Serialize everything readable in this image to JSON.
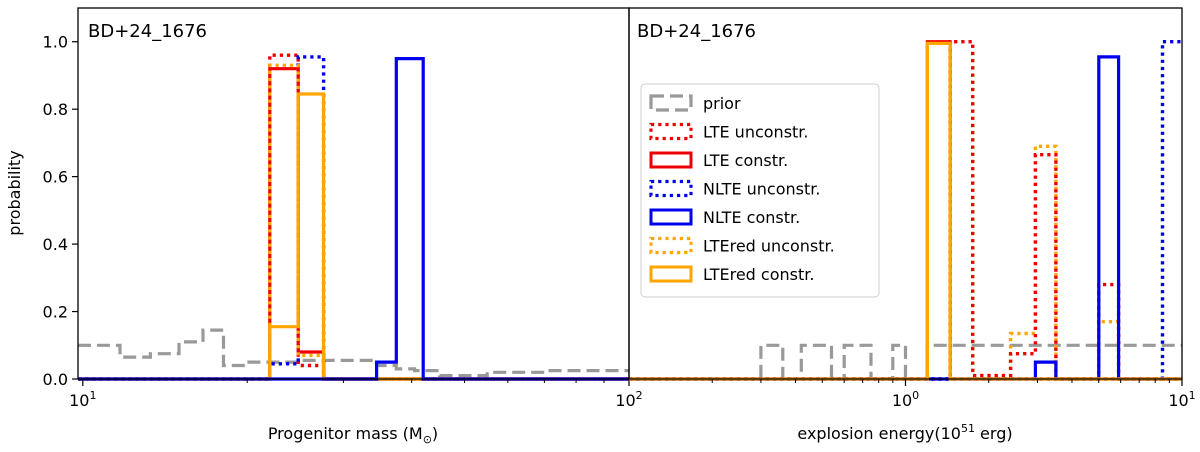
{
  "chart_data": [
    {
      "type": "step-histogram",
      "panel": "left",
      "star_label": "BD+24_1676",
      "xlabel": "Progenitor mass (M",
      "xlabel_sub": "⊙",
      "xlabel_close": ")",
      "ylabel": "probability",
      "xscale": "log",
      "xlim": [
        9.8,
        100
      ],
      "ylim": [
        0,
        1.1
      ],
      "xticks": [
        {
          "value": 10,
          "base": "10",
          "exp": "1"
        },
        {
          "value": 100,
          "base": "10",
          "exp": "2"
        }
      ],
      "yticks": [
        {
          "value": 0,
          "label": "0.0"
        },
        {
          "value": 0.2,
          "label": "0.2"
        },
        {
          "value": 0.4,
          "label": "0.4"
        },
        {
          "value": 0.6,
          "label": "0.6"
        },
        {
          "value": 0.8,
          "label": "0.8"
        },
        {
          "value": 1.0,
          "label": "1.0"
        }
      ],
      "series": [
        {
          "name": "prior",
          "color": "#999999",
          "style": "dashed",
          "edges": [
            9.8,
            11.7,
            13.3,
            15.0,
            16.6,
            18.1,
            19.8,
            24.8,
            26.5,
            34.5,
            37.5,
            40.5,
            45.0,
            55.0,
            70.0,
            100.0
          ],
          "values": [
            0.1,
            0.065,
            0.075,
            0.11,
            0.145,
            0.04,
            0.05,
            0.055,
            0.055,
            0.04,
            0.03,
            0.025,
            0.01,
            0.02,
            0.025
          ]
        },
        {
          "name": "LTE unconstr.",
          "color": "#ee0000",
          "style": "dotted",
          "edges": [
            9.8,
            22.0,
            24.8,
            27.6,
            100.0
          ],
          "values": [
            0,
            0.96,
            0.04,
            0,
            0
          ]
        },
        {
          "name": "NLTE unconstr.",
          "color": "#0000ee",
          "style": "dotted",
          "edges": [
            9.8,
            22.0,
            24.8,
            27.6,
            100.0
          ],
          "values": [
            0,
            0.045,
            0.955,
            0,
            0
          ]
        },
        {
          "name": "LTE constr.",
          "color": "#ee0000",
          "style": "solid",
          "edges": [
            9.8,
            22.0,
            24.8,
            27.6,
            100.0
          ],
          "values": [
            0,
            0.92,
            0.08,
            0,
            0
          ]
        },
        {
          "name": "LTEred unconstr.",
          "color": "#ffa500",
          "style": "dotted",
          "edges": [
            9.8,
            22.0,
            24.8,
            27.6,
            100.0
          ],
          "values": [
            0,
            0.93,
            0.07,
            0,
            0
          ]
        },
        {
          "name": "LTEred constr.",
          "color": "#ffa500",
          "style": "solid",
          "edges": [
            9.8,
            22.0,
            24.8,
            27.6,
            100.0
          ],
          "values": [
            0,
            0.155,
            0.845,
            0,
            0
          ]
        },
        {
          "name": "NLTE constr.",
          "color": "#0000ee",
          "style": "solid",
          "edges": [
            9.8,
            34.5,
            37.5,
            42.0,
            100.0
          ],
          "values": [
            0,
            0.05,
            0.95,
            0,
            0
          ]
        }
      ]
    },
    {
      "type": "step-histogram",
      "panel": "right",
      "star_label": "BD+24_1676",
      "xlabel": "explosion energy(10",
      "xlabel_sup": "51",
      "xlabel_close": " erg)",
      "xscale": "log",
      "xlim": [
        0.1,
        10
      ],
      "ylim": [
        0,
        1.1
      ],
      "xticks": [
        {
          "value": 1,
          "label": "10",
          "exp": "0"
        },
        {
          "value": 10,
          "label": "10",
          "exp": "1"
        }
      ],
      "series": [
        {
          "name": "prior",
          "color": "#999999",
          "style": "dashed",
          "edges": [
            0.1,
            0.3,
            0.36,
            0.42,
            0.54,
            0.6,
            0.75,
            0.9,
            1.0,
            1.2,
            1.45,
            2.0,
            2.95,
            3.5,
            5.0,
            5.9,
            8.5,
            10.0
          ],
          "values": [
            0,
            0.1,
            0,
            0.1,
            0,
            0.1,
            0,
            0.1,
            0,
            0.1,
            0.1,
            0.1,
            0.1,
            0.1,
            0.1,
            0.1,
            0.1
          ]
        },
        {
          "name": "LTEred unconstr.",
          "color": "#ffa500",
          "style": "dotted",
          "edges": [
            0.1,
            1.2,
            1.45,
            1.75,
            2.4,
            2.95,
            3.5,
            5.0,
            5.9,
            10.0
          ],
          "values": [
            0,
            0,
            1.0,
            0.01,
            0.135,
            0.69,
            0,
            0.17,
            0
          ]
        },
        {
          "name": "LTE unconstr.",
          "color": "#ee0000",
          "style": "dotted",
          "edges": [
            0.1,
            1.45,
            1.75,
            2.4,
            2.95,
            3.5,
            5.0,
            5.9,
            10.0
          ],
          "values": [
            0,
            1.0,
            0.01,
            0.075,
            0.665,
            0,
            0.28,
            0
          ]
        },
        {
          "name": "LTE constr.",
          "color": "#ee0000",
          "style": "solid",
          "edges": [
            0.1,
            1.2,
            1.45,
            10.0
          ],
          "values": [
            0,
            1.0,
            0
          ]
        },
        {
          "name": "NLTE unconstr.",
          "color": "#0000ee",
          "style": "dotted",
          "edges": [
            0.1,
            8.5,
            10.0
          ],
          "values": [
            0,
            1.0
          ]
        },
        {
          "name": "NLTE constr.",
          "color": "#0000ee",
          "style": "solid",
          "edges": [
            0.1,
            2.95,
            3.5,
            5.0,
            5.9,
            10.0
          ],
          "values": [
            0,
            0.05,
            0,
            0.955,
            0
          ]
        },
        {
          "name": "LTEred constr.",
          "color": "#ffa500",
          "style": "solid",
          "edges": [
            0.1,
            1.2,
            1.45,
            10.0
          ],
          "values": [
            0,
            0.995,
            0
          ]
        }
      ]
    }
  ],
  "legend": {
    "position": "center-right-of-right-panel",
    "entries": [
      {
        "label": "prior",
        "color": "#999999",
        "style": "dashed"
      },
      {
        "label": "LTE unconstr.",
        "color": "#ee0000",
        "style": "dotted"
      },
      {
        "label": "LTE constr.",
        "color": "#ee0000",
        "style": "solid"
      },
      {
        "label": "NLTE unconstr.",
        "color": "#0000ee",
        "style": "dotted"
      },
      {
        "label": "NLTE constr.",
        "color": "#0000ee",
        "style": "solid"
      },
      {
        "label": "LTEred unconstr.",
        "color": "#ffa500",
        "style": "dotted"
      },
      {
        "label": "LTEred constr.",
        "color": "#ffa500",
        "style": "solid"
      }
    ]
  }
}
